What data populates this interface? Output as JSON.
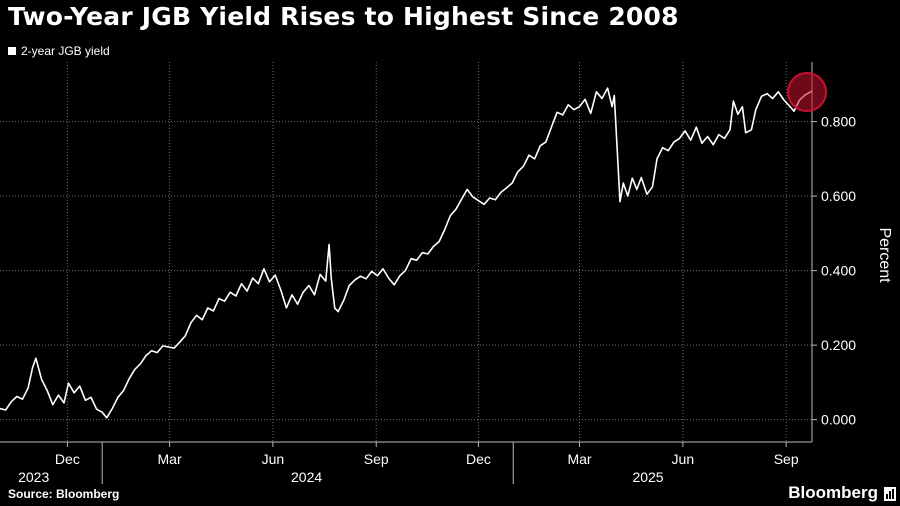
{
  "header": {
    "title": "Two-Year JGB Yield Rises to Highest Since 2008"
  },
  "legend": {
    "label": "2-year JGB yield"
  },
  "footer": {
    "source": "Source: Bloomberg",
    "brand": "Bloomberg"
  },
  "colors": {
    "background": "#000000",
    "line": "#ffffff",
    "grid": "#6e6e6e",
    "highlight": "#c8102e"
  },
  "icons": {
    "brand": "chart-icon"
  },
  "chart_data": {
    "type": "line",
    "title": "Two-Year JGB Yield Rises to Highest Since 2008",
    "ylabel": "Percent",
    "ylim": [
      -0.06,
      0.96
    ],
    "xlim": [
      "2023-10-02",
      "2025-09-24"
    ],
    "y_ticks": [
      0.0,
      0.2,
      0.4,
      0.6,
      0.8
    ],
    "y_tick_labels": [
      "0.000",
      "0.200",
      "0.400",
      "0.600",
      "0.800"
    ],
    "month_ticks": [
      {
        "label": "Dec",
        "date": "2023-12-01"
      },
      {
        "label": "Mar",
        "date": "2024-03-01"
      },
      {
        "label": "Jun",
        "date": "2024-06-01"
      },
      {
        "label": "Sep",
        "date": "2024-09-01"
      },
      {
        "label": "Dec",
        "date": "2024-12-01"
      },
      {
        "label": "Mar",
        "date": "2025-03-01"
      },
      {
        "label": "Jun",
        "date": "2025-06-01"
      },
      {
        "label": "Sep",
        "date": "2025-09-01"
      }
    ],
    "year_dividers": [
      "2024-01-01",
      "2025-01-01"
    ],
    "year_labels": [
      {
        "label": "2023",
        "date": "2023-11-01"
      },
      {
        "label": "2024",
        "date": "2024-07-01"
      },
      {
        "label": "2025",
        "date": "2025-05-01"
      }
    ],
    "highlight": {
      "date": "2025-09-24",
      "value": 0.882
    },
    "grid": true,
    "series": [
      {
        "name": "2-year JGB yield",
        "points": [
          [
            "2023-10-02",
            0.03
          ],
          [
            "2023-10-07",
            0.026
          ],
          [
            "2023-10-12",
            0.048
          ],
          [
            "2023-10-17",
            0.062
          ],
          [
            "2023-10-22",
            0.055
          ],
          [
            "2023-10-27",
            0.085
          ],
          [
            "2023-10-31",
            0.14
          ],
          [
            "2023-11-03",
            0.165
          ],
          [
            "2023-11-08",
            0.108
          ],
          [
            "2023-11-13",
            0.078
          ],
          [
            "2023-11-18",
            0.04
          ],
          [
            "2023-11-23",
            0.066
          ],
          [
            "2023-11-28",
            0.045
          ],
          [
            "2023-12-02",
            0.098
          ],
          [
            "2023-12-07",
            0.072
          ],
          [
            "2023-12-12",
            0.09
          ],
          [
            "2023-12-17",
            0.052
          ],
          [
            "2023-12-22",
            0.06
          ],
          [
            "2023-12-27",
            0.028
          ],
          [
            "2024-01-01",
            0.02
          ],
          [
            "2024-01-05",
            0.005
          ],
          [
            "2024-01-10",
            0.03
          ],
          [
            "2024-01-15",
            0.06
          ],
          [
            "2024-01-20",
            0.078
          ],
          [
            "2024-01-25",
            0.11
          ],
          [
            "2024-01-30",
            0.135
          ],
          [
            "2024-02-04",
            0.15
          ],
          [
            "2024-02-09",
            0.172
          ],
          [
            "2024-02-14",
            0.185
          ],
          [
            "2024-02-19",
            0.18
          ],
          [
            "2024-02-24",
            0.198
          ],
          [
            "2024-02-29",
            0.195
          ],
          [
            "2024-03-05",
            0.192
          ],
          [
            "2024-03-10",
            0.208
          ],
          [
            "2024-03-15",
            0.225
          ],
          [
            "2024-03-20",
            0.26
          ],
          [
            "2024-03-25",
            0.28
          ],
          [
            "2024-03-30",
            0.268
          ],
          [
            "2024-04-04",
            0.3
          ],
          [
            "2024-04-09",
            0.292
          ],
          [
            "2024-04-14",
            0.325
          ],
          [
            "2024-04-19",
            0.318
          ],
          [
            "2024-04-24",
            0.342
          ],
          [
            "2024-04-29",
            0.332
          ],
          [
            "2024-05-04",
            0.365
          ],
          [
            "2024-05-09",
            0.345
          ],
          [
            "2024-05-14",
            0.38
          ],
          [
            "2024-05-19",
            0.365
          ],
          [
            "2024-05-24",
            0.405
          ],
          [
            "2024-05-29",
            0.37
          ],
          [
            "2024-06-03",
            0.388
          ],
          [
            "2024-06-08",
            0.348
          ],
          [
            "2024-06-13",
            0.3
          ],
          [
            "2024-06-18",
            0.335
          ],
          [
            "2024-06-23",
            0.31
          ],
          [
            "2024-06-28",
            0.342
          ],
          [
            "2024-07-03",
            0.36
          ],
          [
            "2024-07-08",
            0.335
          ],
          [
            "2024-07-13",
            0.39
          ],
          [
            "2024-07-18",
            0.372
          ],
          [
            "2024-07-21",
            0.47
          ],
          [
            "2024-07-23",
            0.378
          ],
          [
            "2024-07-26",
            0.3
          ],
          [
            "2024-07-29",
            0.29
          ],
          [
            "2024-08-03",
            0.32
          ],
          [
            "2024-08-08",
            0.36
          ],
          [
            "2024-08-13",
            0.375
          ],
          [
            "2024-08-18",
            0.385
          ],
          [
            "2024-08-23",
            0.378
          ],
          [
            "2024-08-28",
            0.398
          ],
          [
            "2024-09-02",
            0.386
          ],
          [
            "2024-09-07",
            0.405
          ],
          [
            "2024-09-12",
            0.38
          ],
          [
            "2024-09-17",
            0.362
          ],
          [
            "2024-09-22",
            0.386
          ],
          [
            "2024-09-27",
            0.4
          ],
          [
            "2024-10-02",
            0.432
          ],
          [
            "2024-10-07",
            0.428
          ],
          [
            "2024-10-12",
            0.448
          ],
          [
            "2024-10-17",
            0.445
          ],
          [
            "2024-10-22",
            0.465
          ],
          [
            "2024-10-27",
            0.478
          ],
          [
            "2024-11-01",
            0.51
          ],
          [
            "2024-11-06",
            0.548
          ],
          [
            "2024-11-11",
            0.565
          ],
          [
            "2024-11-16",
            0.592
          ],
          [
            "2024-11-21",
            0.618
          ],
          [
            "2024-11-26",
            0.598
          ],
          [
            "2024-12-01",
            0.588
          ],
          [
            "2024-12-06",
            0.578
          ],
          [
            "2024-12-11",
            0.595
          ],
          [
            "2024-12-16",
            0.59
          ],
          [
            "2024-12-21",
            0.61
          ],
          [
            "2024-12-26",
            0.622
          ],
          [
            "2024-12-31",
            0.635
          ],
          [
            "2025-01-05",
            0.665
          ],
          [
            "2025-01-10",
            0.68
          ],
          [
            "2025-01-15",
            0.71
          ],
          [
            "2025-01-20",
            0.7
          ],
          [
            "2025-01-25",
            0.735
          ],
          [
            "2025-01-30",
            0.745
          ],
          [
            "2025-02-04",
            0.785
          ],
          [
            "2025-02-09",
            0.825
          ],
          [
            "2025-02-14",
            0.818
          ],
          [
            "2025-02-19",
            0.845
          ],
          [
            "2025-02-24",
            0.832
          ],
          [
            "2025-03-01",
            0.84
          ],
          [
            "2025-03-06",
            0.86
          ],
          [
            "2025-03-11",
            0.822
          ],
          [
            "2025-03-16",
            0.88
          ],
          [
            "2025-03-21",
            0.862
          ],
          [
            "2025-03-26",
            0.89
          ],
          [
            "2025-03-30",
            0.84
          ],
          [
            "2025-04-01",
            0.87
          ],
          [
            "2025-04-04",
            0.7
          ],
          [
            "2025-04-06",
            0.585
          ],
          [
            "2025-04-09",
            0.635
          ],
          [
            "2025-04-13",
            0.6
          ],
          [
            "2025-04-17",
            0.648
          ],
          [
            "2025-04-21",
            0.618
          ],
          [
            "2025-04-25",
            0.65
          ],
          [
            "2025-04-30",
            0.605
          ],
          [
            "2025-05-05",
            0.625
          ],
          [
            "2025-05-09",
            0.7
          ],
          [
            "2025-05-14",
            0.73
          ],
          [
            "2025-05-19",
            0.722
          ],
          [
            "2025-05-24",
            0.745
          ],
          [
            "2025-05-29",
            0.755
          ],
          [
            "2025-06-03",
            0.775
          ],
          [
            "2025-06-08",
            0.75
          ],
          [
            "2025-06-13",
            0.785
          ],
          [
            "2025-06-18",
            0.742
          ],
          [
            "2025-06-23",
            0.76
          ],
          [
            "2025-06-28",
            0.738
          ],
          [
            "2025-07-03",
            0.765
          ],
          [
            "2025-07-08",
            0.755
          ],
          [
            "2025-07-13",
            0.778
          ],
          [
            "2025-07-16",
            0.855
          ],
          [
            "2025-07-20",
            0.82
          ],
          [
            "2025-07-24",
            0.84
          ],
          [
            "2025-07-27",
            0.77
          ],
          [
            "2025-08-01",
            0.778
          ],
          [
            "2025-08-05",
            0.832
          ],
          [
            "2025-08-10",
            0.868
          ],
          [
            "2025-08-15",
            0.875
          ],
          [
            "2025-08-20",
            0.862
          ],
          [
            "2025-08-25",
            0.88
          ],
          [
            "2025-08-30",
            0.858
          ],
          [
            "2025-09-04",
            0.842
          ],
          [
            "2025-09-08",
            0.828
          ],
          [
            "2025-09-13",
            0.858
          ],
          [
            "2025-09-18",
            0.872
          ],
          [
            "2025-09-24",
            0.882
          ]
        ]
      }
    ]
  }
}
